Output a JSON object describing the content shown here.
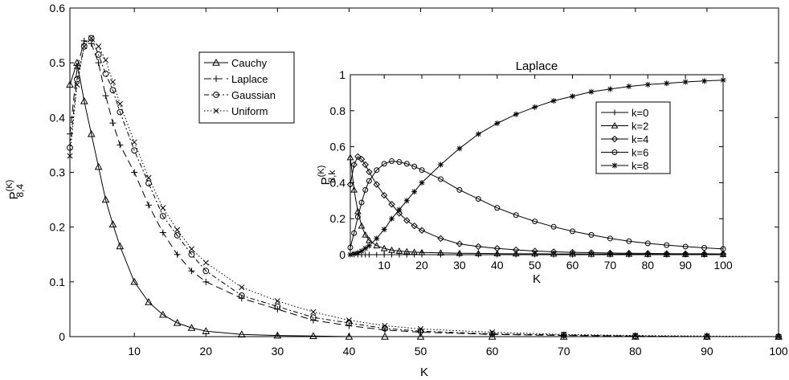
{
  "main": {
    "xlabel": "K",
    "ylabel_main": "P",
    "ylabel_super": "(K)",
    "ylabel_sub": "8,4",
    "xlim": [
      1,
      100
    ],
    "ylim": [
      0,
      0.6
    ],
    "xticks": [
      10,
      20,
      30,
      40,
      50,
      60,
      70,
      80,
      90,
      100
    ],
    "yticks": [
      0,
      0.1,
      0.2,
      0.3,
      0.4,
      0.5,
      0.6
    ],
    "legend": [
      "Cauchy",
      "Laplace",
      "Gaussian",
      "Uniform"
    ]
  },
  "inset": {
    "title": "Laplace",
    "xlabel": "K",
    "ylabel_main": "P",
    "ylabel_super": "(K)",
    "ylabel_sub": "8,k",
    "xlim": [
      1,
      100
    ],
    "ylim": [
      0,
      1
    ],
    "xticks": [
      10,
      20,
      30,
      40,
      50,
      60,
      70,
      80,
      90,
      100
    ],
    "yticks": [
      0,
      0.2,
      0.4,
      0.6,
      0.8,
      1
    ],
    "legend": [
      "k=0",
      "k=2",
      "k=4",
      "k=6",
      "k=8"
    ]
  },
  "chart_data": [
    {
      "type": "line",
      "xlabel": "K",
      "ylabel": "P(K) 8,4",
      "xlim": [
        1,
        100
      ],
      "ylim": [
        0,
        0.6
      ],
      "grid": false,
      "legend_position": "top-left-center",
      "x": [
        1,
        2,
        3,
        4,
        5,
        6,
        7,
        8,
        10,
        12,
        14,
        16,
        18,
        20,
        25,
        30,
        35,
        40,
        45,
        50,
        60,
        70,
        80,
        90,
        100
      ],
      "series": [
        {
          "name": "Cauchy",
          "marker": "triangle",
          "values": [
            0.46,
            0.5,
            0.43,
            0.37,
            0.31,
            0.25,
            0.205,
            0.165,
            0.1,
            0.063,
            0.04,
            0.025,
            0.016,
            0.01,
            0.004,
            0.002,
            0.001,
            0.0,
            0.0,
            0.0,
            0.0,
            0.0,
            0.0,
            0.0,
            0.0
          ]
        },
        {
          "name": "Laplace",
          "marker": "plus",
          "values": [
            0.37,
            0.49,
            0.54,
            0.535,
            0.5,
            0.44,
            0.39,
            0.35,
            0.3,
            0.24,
            0.19,
            0.15,
            0.12,
            0.1,
            0.07,
            0.05,
            0.03,
            0.02,
            0.012,
            0.008,
            0.004,
            0.002,
            0.001,
            0.0,
            0.0
          ]
        },
        {
          "name": "Gaussian",
          "marker": "circle",
          "values": [
            0.345,
            0.47,
            0.53,
            0.545,
            0.515,
            0.48,
            0.45,
            0.41,
            0.34,
            0.28,
            0.22,
            0.185,
            0.15,
            0.12,
            0.075,
            0.055,
            0.035,
            0.025,
            0.015,
            0.01,
            0.005,
            0.003,
            0.001,
            0.0,
            0.0
          ]
        },
        {
          "name": "Uniform",
          "marker": "x",
          "values": [
            0.33,
            0.46,
            0.53,
            0.545,
            0.53,
            0.505,
            0.465,
            0.425,
            0.355,
            0.29,
            0.235,
            0.195,
            0.16,
            0.135,
            0.09,
            0.065,
            0.045,
            0.03,
            0.02,
            0.014,
            0.008,
            0.004,
            0.002,
            0.001,
            0.0
          ]
        }
      ]
    },
    {
      "type": "line",
      "title": "Laplace",
      "xlabel": "K",
      "ylabel": "P(K) 8,k",
      "xlim": [
        1,
        100
      ],
      "ylim": [
        0,
        1
      ],
      "grid": false,
      "legend_position": "top-right",
      "x": [
        1,
        2,
        3,
        4,
        5,
        6,
        8,
        10,
        12,
        14,
        16,
        18,
        20,
        25,
        30,
        35,
        40,
        45,
        50,
        55,
        60,
        65,
        70,
        75,
        80,
        85,
        90,
        95,
        100
      ],
      "series": [
        {
          "name": "k=0",
          "marker": "plus",
          "values": [
            0.0,
            0.0,
            0.0,
            0.0,
            0.0,
            0.0,
            0.0,
            0.0,
            0.0,
            0.0,
            0.0,
            0.0,
            0.0,
            0.0,
            0.0,
            0.0,
            0.0,
            0.0,
            0.0,
            0.0,
            0.0,
            0.0,
            0.0,
            0.0,
            0.0,
            0.0,
            0.0,
            0.0,
            0.0
          ]
        },
        {
          "name": "k=2",
          "marker": "triangle",
          "values": [
            0.54,
            0.36,
            0.24,
            0.16,
            0.11,
            0.08,
            0.05,
            0.035,
            0.025,
            0.02,
            0.017,
            0.014,
            0.012,
            0.01,
            0.008,
            0.007,
            0.006,
            0.005,
            0.005,
            0.004,
            0.004,
            0.003,
            0.003,
            0.003,
            0.002,
            0.002,
            0.002,
            0.002,
            0.002
          ]
        },
        {
          "name": "k=4",
          "marker": "diamond",
          "values": [
            0.39,
            0.5,
            0.545,
            0.53,
            0.5,
            0.46,
            0.39,
            0.33,
            0.28,
            0.23,
            0.19,
            0.16,
            0.135,
            0.09,
            0.06,
            0.045,
            0.035,
            0.027,
            0.02,
            0.016,
            0.013,
            0.011,
            0.009,
            0.008,
            0.007,
            0.006,
            0.005,
            0.005,
            0.004
          ]
        },
        {
          "name": "k=6",
          "marker": "circle",
          "values": [
            0.04,
            0.12,
            0.21,
            0.29,
            0.36,
            0.41,
            0.47,
            0.505,
            0.52,
            0.515,
            0.505,
            0.49,
            0.47,
            0.42,
            0.36,
            0.31,
            0.26,
            0.22,
            0.185,
            0.155,
            0.13,
            0.11,
            0.09,
            0.075,
            0.063,
            0.053,
            0.045,
            0.038,
            0.032
          ]
        },
        {
          "name": "k=8",
          "marker": "star",
          "values": [
            0.0,
            0.005,
            0.01,
            0.02,
            0.035,
            0.05,
            0.09,
            0.14,
            0.2,
            0.25,
            0.3,
            0.35,
            0.4,
            0.5,
            0.59,
            0.67,
            0.73,
            0.78,
            0.82,
            0.855,
            0.88,
            0.905,
            0.92,
            0.935,
            0.945,
            0.952,
            0.96,
            0.965,
            0.97
          ]
        }
      ]
    }
  ]
}
